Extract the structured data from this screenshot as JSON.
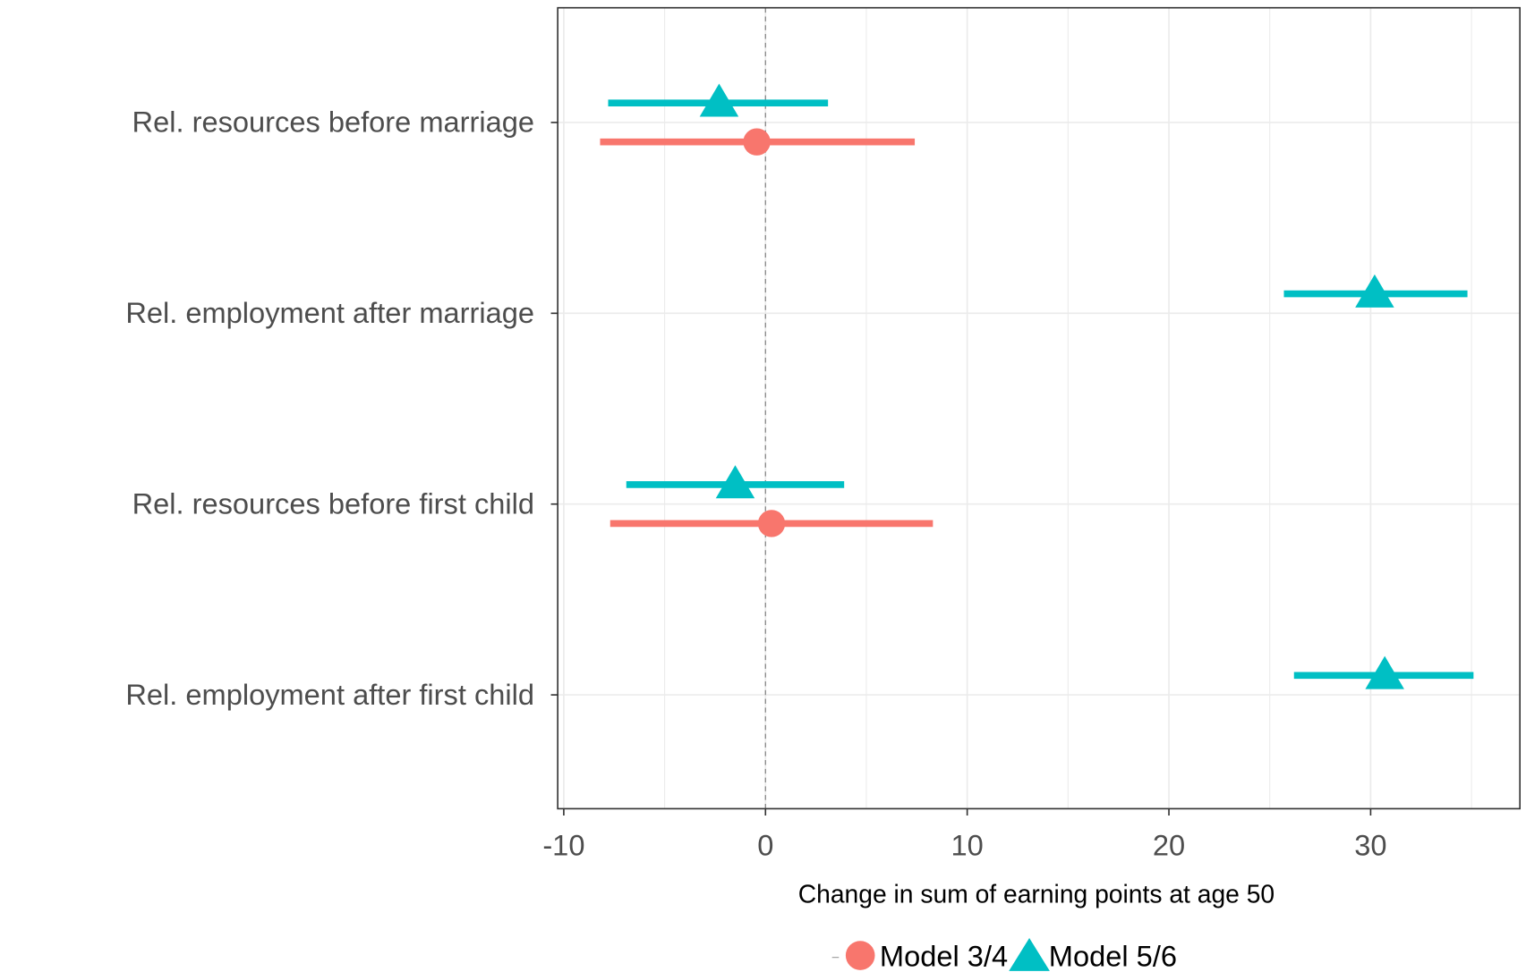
{
  "chart_data": {
    "type": "dotwhisker",
    "x_label": "Change in sum of earning points at age 50",
    "categories": [
      "Rel. resources before marriage",
      "Rel. employment after marriage",
      "Rel. resources before first child",
      "Rel. employment after first child"
    ],
    "series": [
      {
        "name": "Model 3/4",
        "color": "#f8766d",
        "marker": "circle",
        "values": [
          -0.43,
          null,
          0.3,
          null
        ],
        "lower": [
          -8.2,
          null,
          -7.7,
          null
        ],
        "upper": [
          7.4,
          null,
          8.3,
          null
        ]
      },
      {
        "name": "Model 5/6",
        "color": "#00bfc4",
        "marker": "triangle",
        "values": [
          -2.3,
          30.2,
          -1.5,
          30.7
        ],
        "lower": [
          -7.8,
          25.7,
          -6.9,
          26.2
        ],
        "upper": [
          3.1,
          34.8,
          3.9,
          35.1
        ]
      }
    ],
    "xlim": [
      -10.3,
      37.4
    ],
    "xticks": [
      -10,
      0,
      10,
      20,
      30
    ],
    "x_minor_grid": [
      -5,
      5,
      15,
      25,
      35
    ],
    "reference_line": 0,
    "grid": true,
    "legend": "bottom"
  }
}
